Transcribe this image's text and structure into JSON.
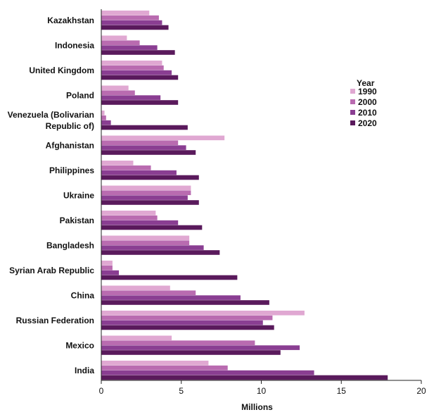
{
  "chart_data": {
    "type": "bar",
    "orientation": "horizontal",
    "categories": [
      "Kazakhstan",
      "Indonesia",
      "United Kingdom",
      "Poland",
      [
        "Venezuela (Bolivarian",
        "Republic of)"
      ],
      "Afghanistan",
      "Philippines",
      "Ukraine",
      "Pakistan",
      "Bangladesh",
      "Syrian Arab Republic",
      "China",
      "Russian Federation",
      "Mexico",
      "India"
    ],
    "series": [
      {
        "name": "1990",
        "color": "#e0a8d2",
        "values": [
          3.0,
          1.6,
          3.8,
          1.7,
          0.2,
          7.7,
          2.0,
          5.6,
          3.4,
          5.5,
          0.7,
          4.3,
          12.7,
          4.4,
          6.7
        ]
      },
      {
        "name": "2000",
        "color": "#b96bb0",
        "values": [
          3.6,
          2.4,
          3.9,
          2.1,
          0.3,
          4.8,
          3.1,
          5.6,
          3.5,
          5.5,
          0.7,
          5.9,
          10.7,
          9.6,
          7.9
        ]
      },
      {
        "name": "2010",
        "color": "#8a3e92",
        "values": [
          3.8,
          3.5,
          4.4,
          3.7,
          0.6,
          5.3,
          4.7,
          5.4,
          4.8,
          6.4,
          1.1,
          8.7,
          10.1,
          12.4,
          13.3
        ]
      },
      {
        "name": "2020",
        "color": "#5a1a5c",
        "values": [
          4.2,
          4.6,
          4.8,
          4.8,
          5.4,
          5.9,
          6.1,
          6.1,
          6.3,
          7.4,
          8.5,
          10.5,
          10.8,
          11.2,
          17.9
        ]
      }
    ],
    "xlabel": "Millions",
    "xlim": [
      0,
      20
    ],
    "xticks": [
      0,
      5,
      10,
      15,
      20
    ],
    "legend": {
      "title": "Year",
      "position": "right"
    },
    "grid": false
  }
}
